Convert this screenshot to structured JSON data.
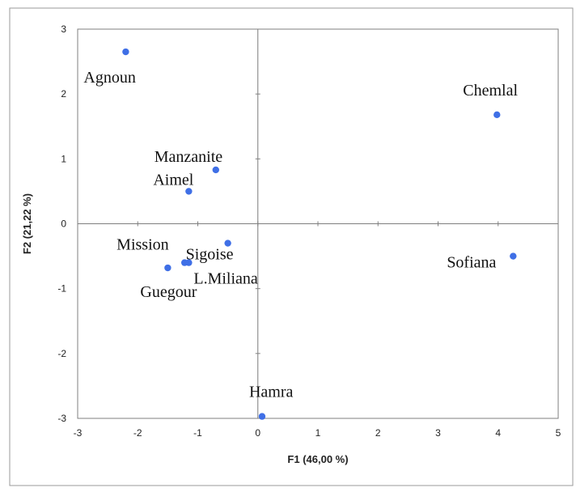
{
  "chart_data": {
    "type": "scatter",
    "xlabel": "F1 (46,00 %)",
    "ylabel": "F2 (21,22 %)",
    "xlim": [
      -3,
      5
    ],
    "ylim": [
      -3,
      3
    ],
    "xticks": [
      "-3",
      "-2",
      "-1",
      "0",
      "1",
      "2",
      "3",
      "4",
      "5"
    ],
    "yticks": [
      "3",
      "2",
      "1",
      "0",
      "-1",
      "-2",
      "-3"
    ],
    "grid": false,
    "points": [
      {
        "label": "Agnoun",
        "x": -2.2,
        "y": 2.65
      },
      {
        "label": "Chemlal",
        "x": 3.98,
        "y": 1.68
      },
      {
        "label": "Manzanite",
        "x": -0.7,
        "y": 0.83
      },
      {
        "label": "Aimel",
        "x": -1.15,
        "y": 0.5
      },
      {
        "label": "Mission",
        "x": -1.22,
        "y": -0.6
      },
      {
        "label": "Sigoise",
        "x": -0.5,
        "y": -0.3
      },
      {
        "label": "L.Miliana",
        "x": -1.15,
        "y": -0.6
      },
      {
        "label": "Guegour",
        "x": -1.5,
        "y": -0.68
      },
      {
        "label": "Sofiana",
        "x": 4.25,
        "y": -0.5
      },
      {
        "label": "Hamra",
        "x": 0.07,
        "y": -2.97
      }
    ]
  }
}
